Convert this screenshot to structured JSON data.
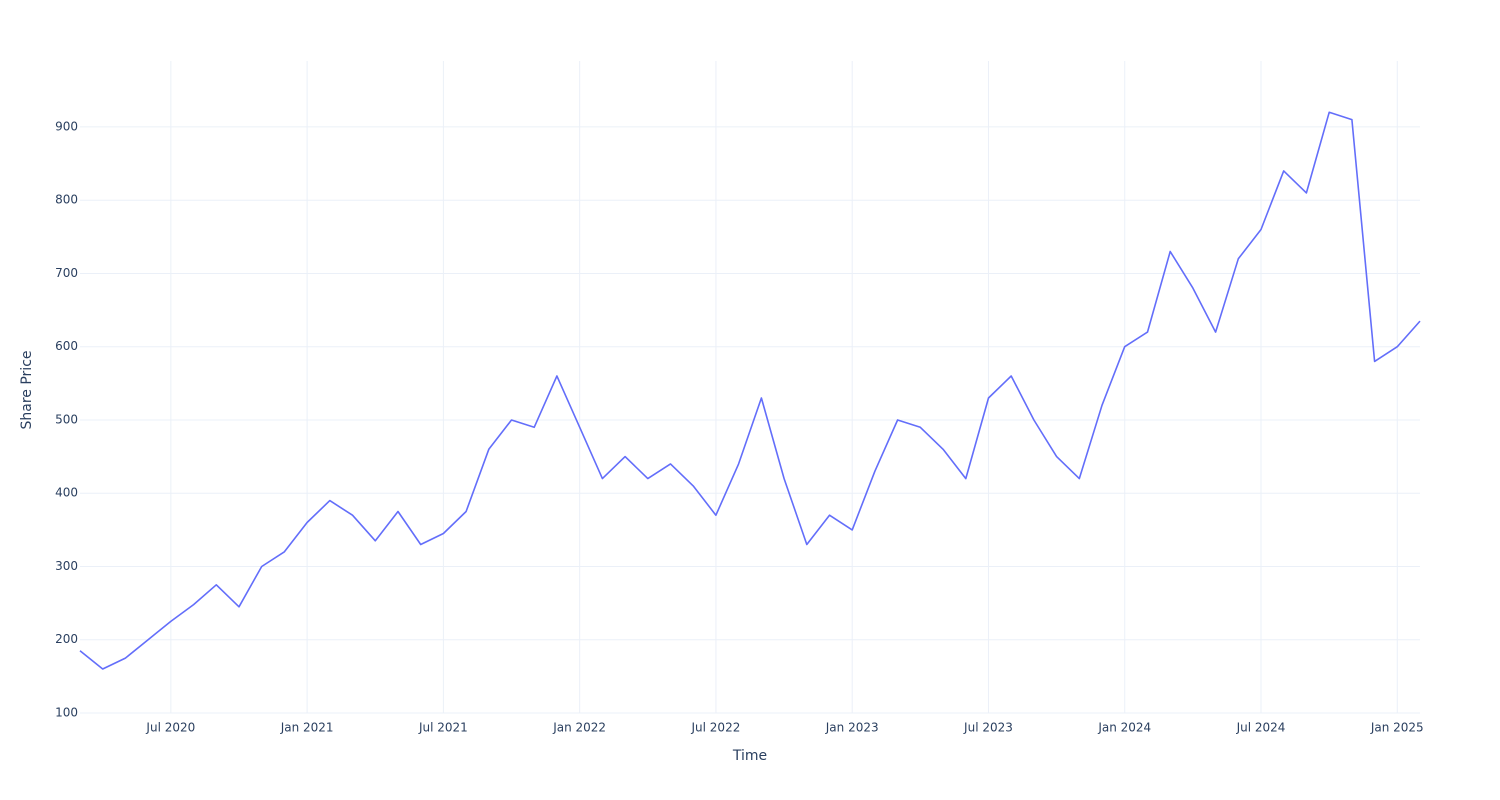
{
  "chart_data": {
    "type": "line",
    "x_label": "Time",
    "y_label": "Share Price",
    "x": [
      "2020-03",
      "2020-04",
      "2020-05",
      "2020-06",
      "2020-07",
      "2020-08",
      "2020-09",
      "2020-10",
      "2020-11",
      "2020-12",
      "2021-01",
      "2021-02",
      "2021-03",
      "2021-04",
      "2021-05",
      "2021-06",
      "2021-07",
      "2021-08",
      "2021-09",
      "2021-10",
      "2021-11",
      "2021-12",
      "2022-01",
      "2022-02",
      "2022-03",
      "2022-04",
      "2022-05",
      "2022-06",
      "2022-07",
      "2022-08",
      "2022-09",
      "2022-10",
      "2022-11",
      "2022-12",
      "2023-01",
      "2023-02",
      "2023-03",
      "2023-04",
      "2023-05",
      "2023-06",
      "2023-07",
      "2023-08",
      "2023-09",
      "2023-10",
      "2023-11",
      "2023-12",
      "2024-01",
      "2024-02",
      "2024-03",
      "2024-04",
      "2024-05",
      "2024-06",
      "2024-07",
      "2024-08",
      "2024-09",
      "2024-10",
      "2024-11",
      "2024-12",
      "2025-01",
      "2025-02"
    ],
    "values": [
      185,
      160,
      175,
      200,
      225,
      248,
      275,
      245,
      300,
      320,
      360,
      390,
      370,
      335,
      375,
      330,
      345,
      375,
      460,
      500,
      490,
      560,
      490,
      420,
      450,
      420,
      440,
      410,
      370,
      440,
      530,
      420,
      330,
      370,
      350,
      430,
      500,
      490,
      460,
      420,
      530,
      560,
      500,
      450,
      420,
      520,
      600,
      620,
      730,
      680,
      620,
      720,
      760,
      840,
      810,
      920,
      910,
      580,
      600,
      635
    ],
    "color": "#636efa",
    "xlim": [
      "2020-03",
      "2025-02"
    ],
    "xticks": [
      {
        "value": "2020-07",
        "label": "Jul 2020"
      },
      {
        "value": "2021-01",
        "label": "Jan 2021"
      },
      {
        "value": "2021-07",
        "label": "Jul 2021"
      },
      {
        "value": "2022-01",
        "label": "Jan 2022"
      },
      {
        "value": "2022-07",
        "label": "Jul 2022"
      },
      {
        "value": "2023-01",
        "label": "Jan 2023"
      },
      {
        "value": "2023-07",
        "label": "Jul 2023"
      },
      {
        "value": "2024-01",
        "label": "Jan 2024"
      },
      {
        "value": "2024-07",
        "label": "Jul 2024"
      },
      {
        "value": "2025-01",
        "label": "Jan 2025"
      }
    ],
    "ylim": [
      100,
      990
    ],
    "yticks": [
      100,
      200,
      300,
      400,
      500,
      600,
      700,
      800,
      900
    ],
    "grid": true
  }
}
